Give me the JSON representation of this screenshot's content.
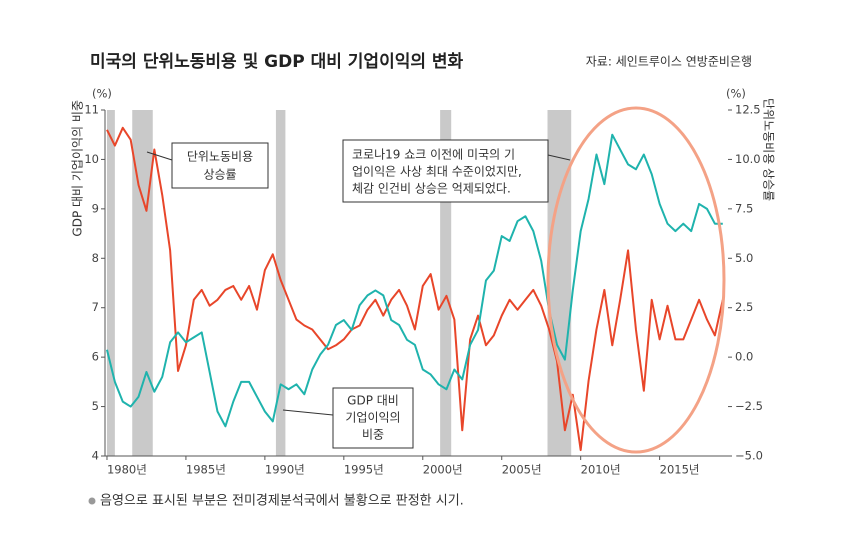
{
  "chart_data": {
    "type": "line",
    "title": "미국의 단위노동비용 및 GDP 대비 기업이익의 변화",
    "source": "자료: 세인트루이스 연방준비은행",
    "y_unit": "(%)",
    "y2_unit": "(%)",
    "ylabel": "GDP 대비 기업이익의 비중",
    "y2label": "단위노동비용 상승률",
    "annotation_lines": [
      "코로나19 쇼크 이전에 미국의 기",
      "업이익은 사상 최대 수준이었지만,",
      "체감 인건비 상승은 억제되었다."
    ],
    "footnote": "음영으로 표시된 부분은 전미경제분석국에서 불황으로 판정한 시기.",
    "recessions": [
      [
        1980.0,
        1980.5
      ],
      [
        1981.6,
        1982.9
      ],
      [
        1990.7,
        1991.3
      ],
      [
        2001.1,
        2001.8
      ],
      [
        2007.9,
        2009.4
      ]
    ],
    "xlim": [
      1979.875,
      2019.33
    ],
    "xticks": [
      {
        "value": 1980,
        "label": "1980년"
      },
      {
        "value": 1985,
        "label": "1985년"
      },
      {
        "value": 1990,
        "label": "1990년"
      },
      {
        "value": 1995,
        "label": "1995년"
      },
      {
        "value": 2000,
        "label": "2000년"
      },
      {
        "value": 2005,
        "label": "2005년"
      },
      {
        "value": 2010,
        "label": "2010년"
      },
      {
        "value": 2015,
        "label": "2015년"
      }
    ],
    "ylim": [
      4,
      11
    ],
    "yticks": [
      4,
      5,
      6,
      7,
      8,
      9,
      10,
      11
    ],
    "y2lim": [
      -5,
      12.5
    ],
    "y2ticks": [
      {
        "value": -5,
        "label": "−5.0"
      },
      {
        "value": -2.5,
        "label": "−2.5"
      },
      {
        "value": 0,
        "label": "0.0"
      },
      2.5,
      {
        "value": 5,
        "label": "5.0"
      },
      7.5,
      {
        "value": 10,
        "label": "10.0"
      },
      12.5
    ],
    "x": [
      1980,
      1980.5,
      1981,
      1981.5,
      1982,
      1982.5,
      1983,
      1983.5,
      1984,
      1984.5,
      1985,
      1985.5,
      1986,
      1986.5,
      1987,
      1987.5,
      1988,
      1988.5,
      1989,
      1989.5,
      1990,
      1990.5,
      1991,
      1991.5,
      1992,
      1992.5,
      1993,
      1993.5,
      1994,
      1994.5,
      1995,
      1995.5,
      1996,
      1996.5,
      1997,
      1997.5,
      1998,
      1998.5,
      1999,
      1999.5,
      2000,
      2000.5,
      2001,
      2001.5,
      2002,
      2002.5,
      2003,
      2003.5,
      2004,
      2004.5,
      2005,
      2005.5,
      2006,
      2006.5,
      2007,
      2007.5,
      2008,
      2008.5,
      2009,
      2009.5,
      2010,
      2010.5,
      2011,
      2011.5,
      2012,
      2012.5,
      2013,
      2013.5,
      2014,
      2014.5,
      2015,
      2015.5,
      2016,
      2016.5,
      2017,
      2017.5,
      2018,
      2018.5,
      2019
    ],
    "series": [
      {
        "name_lines": [
          "GDP 대비",
          "기업이익의",
          "비중"
        ],
        "color": "#1fb3ad",
        "values": [
          6.15,
          5.5,
          5.1,
          5.0,
          5.2,
          5.7,
          5.3,
          5.6,
          6.3,
          6.5,
          6.3,
          6.4,
          6.5,
          5.7,
          4.9,
          4.6,
          5.1,
          5.5,
          5.5,
          5.2,
          4.9,
          4.7,
          5.45,
          5.35,
          5.45,
          5.25,
          5.75,
          6.05,
          6.25,
          6.65,
          6.75,
          6.55,
          7.05,
          7.25,
          7.35,
          7.25,
          6.75,
          6.65,
          6.35,
          6.25,
          5.75,
          5.65,
          5.45,
          5.35,
          5.75,
          5.55,
          6.25,
          6.55,
          7.55,
          7.75,
          8.45,
          8.35,
          8.75,
          8.85,
          8.55,
          7.95,
          6.95,
          6.25,
          5.95,
          7.35,
          8.55,
          9.2,
          10.1,
          9.5,
          10.5,
          10.2,
          9.9,
          9.8,
          10.1,
          9.7,
          9.1,
          8.7,
          8.55,
          8.7,
          8.55,
          9.1,
          9.0,
          8.7,
          8.7
        ]
      },
      {
        "name_lines": [
          "단위노동비용",
          "상승률"
        ],
        "color": "#e8462a",
        "axis": "y2",
        "values": [
          11.5,
          10.7,
          11.6,
          11.0,
          8.7,
          7.4,
          10.5,
          8.2,
          5.4,
          -0.7,
          0.6,
          2.9,
          3.4,
          2.6,
          2.9,
          3.4,
          3.6,
          2.9,
          3.6,
          2.4,
          4.4,
          5.2,
          3.9,
          2.9,
          1.9,
          1.6,
          1.4,
          0.9,
          0.4,
          0.6,
          0.9,
          1.4,
          1.6,
          2.4,
          2.9,
          2.1,
          2.9,
          3.4,
          2.6,
          1.4,
          3.6,
          4.2,
          2.4,
          3.1,
          1.9,
          -3.7,
          0.9,
          2.1,
          0.6,
          1.1,
          2.1,
          2.9,
          2.4,
          2.9,
          3.4,
          2.6,
          1.4,
          -0.2,
          -3.7,
          -1.9,
          -4.7,
          -1.2,
          1.4,
          3.4,
          0.6,
          2.9,
          5.4,
          1.4,
          -1.7,
          2.9,
          0.9,
          2.6,
          0.9,
          0.9,
          1.9,
          2.9,
          1.9,
          1.1,
          2.9
        ]
      }
    ]
  }
}
